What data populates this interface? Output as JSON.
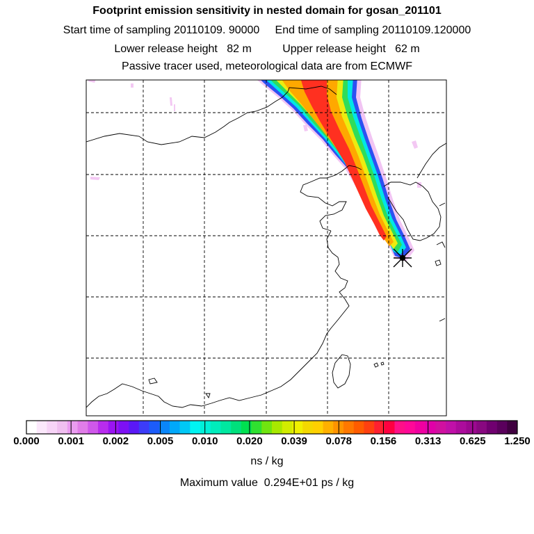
{
  "header": {
    "title": "Footprint emission sensitivity in nested domain for gosan_201101",
    "sampling_line": "Start time of sampling 20110109. 90000     End time of sampling 20110109.120000",
    "release_line": "Lower release height   82 m          Upper release height   62 m",
    "tracer_line": "Passive tracer used, meteorological data are from ECMWF"
  },
  "colorbar": {
    "tick_labels": [
      "0.000",
      "0.001",
      "0.002",
      "0.005",
      "0.010",
      "0.020",
      "0.039",
      "0.078",
      "0.156",
      "0.313",
      "0.625",
      "1.250"
    ],
    "colors": [
      "#ffffff",
      "#fbe8fb",
      "#f7d4f7",
      "#f0bff0",
      "#ea9cf0",
      "#e07de8",
      "#cf58ea",
      "#b82cee",
      "#9a14f2",
      "#7d10f4",
      "#5a18f6",
      "#3c3cf8",
      "#1c5cfa",
      "#0a86fa",
      "#00a8fa",
      "#00c8f6",
      "#00f4f2",
      "#00f0d8",
      "#00ecbc",
      "#00e8a0",
      "#00e07c",
      "#00e050",
      "#30e030",
      "#70e410",
      "#a8e800",
      "#d2ec00",
      "#f0f000",
      "#f4d800",
      "#ffd000",
      "#ffb000",
      "#ff9400",
      "#ff7800",
      "#ff5c00",
      "#ff4010",
      "#ff2030",
      "#ff0040",
      "#ff1088",
      "#ff0898",
      "#f000a0",
      "#e000a8",
      "#d010a0",
      "#c010a8",
      "#ac0c9c",
      "#9c0890",
      "#880880",
      "#700070",
      "#5a005c",
      "#400040"
    ],
    "unit_label": "ns / kg",
    "max_value_text": "Maximum value  0.294E+01 ps / kg"
  },
  "map": {
    "receptor": "gosan",
    "plume_color_core": "#ff2020"
  }
}
